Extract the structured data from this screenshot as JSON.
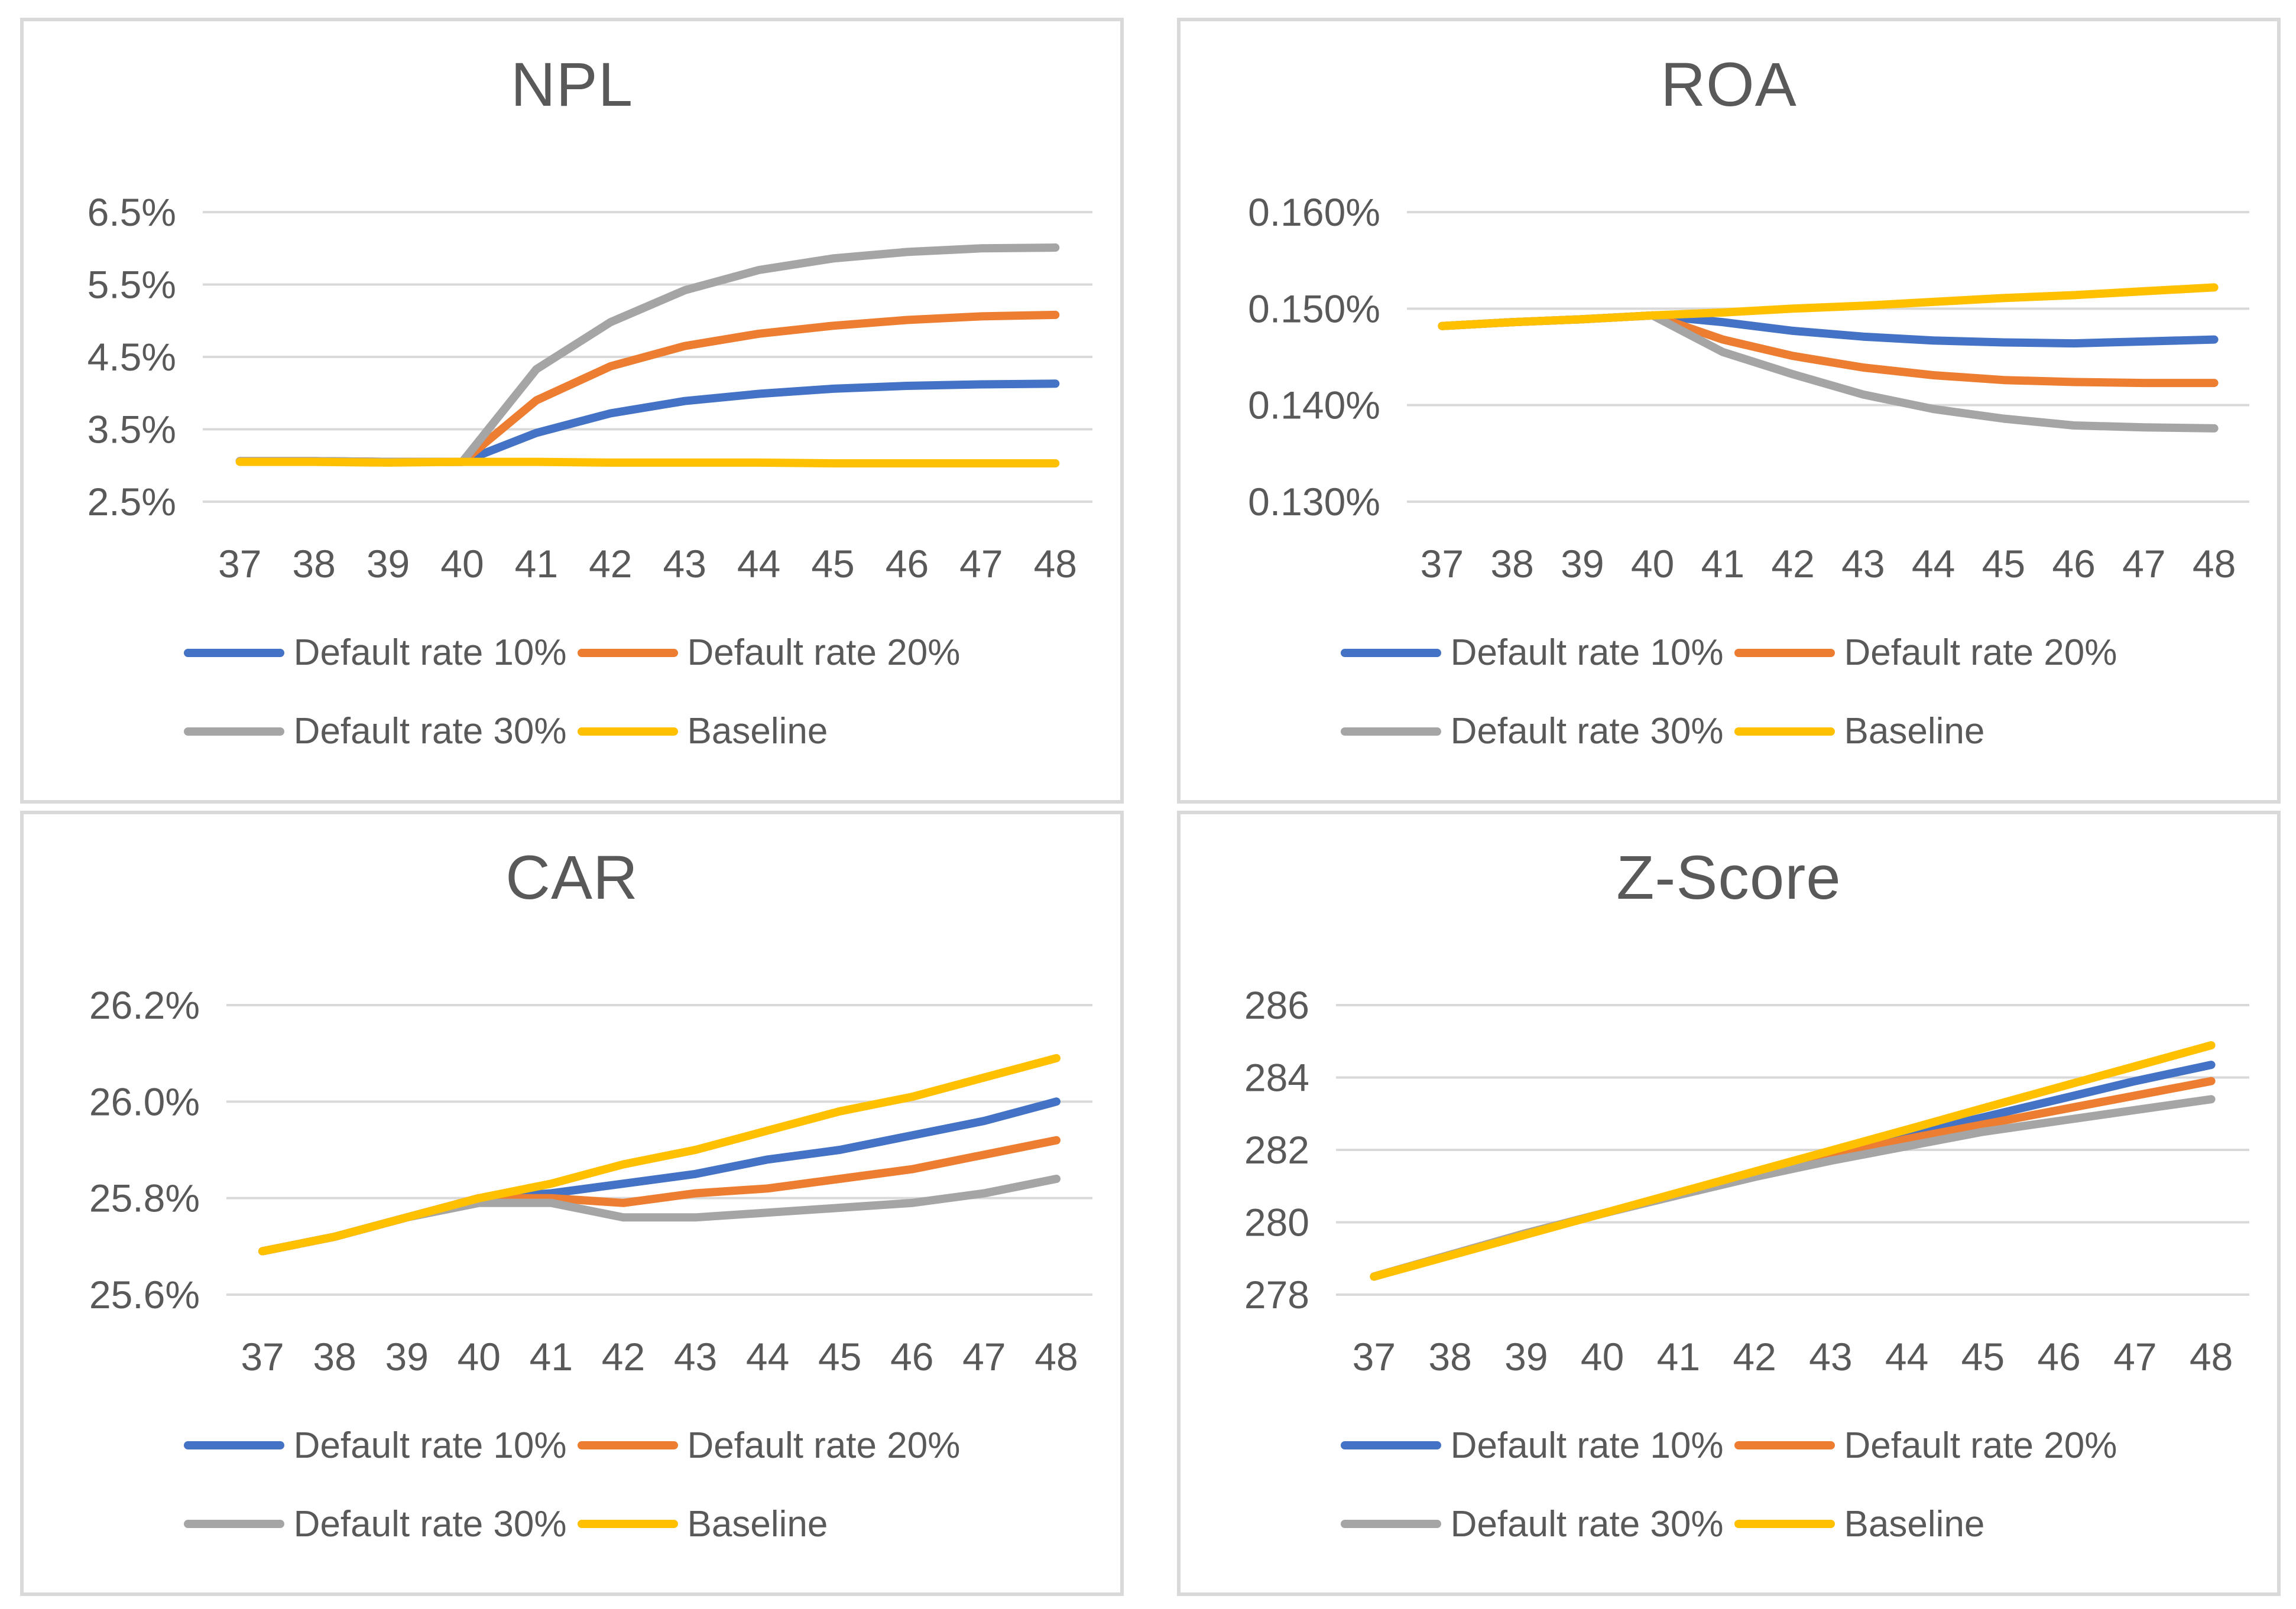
{
  "theme": {
    "text_color": "#595959",
    "gridline_color": "#D9D9D9",
    "panel_border_color": "#D9D9D9",
    "background": "#FFFFFF",
    "series_colors": {
      "default_rate_10": "#4472C4",
      "default_rate_20": "#ED7D31",
      "default_rate_30": "#A5A5A5",
      "baseline": "#FFC000"
    }
  },
  "chart_data": [
    {
      "id": "npl",
      "type": "line",
      "title": "NPL",
      "x": [
        37,
        38,
        39,
        40,
        41,
        42,
        43,
        44,
        45,
        46,
        47,
        48
      ],
      "ylim": [
        2.5,
        6.5
      ],
      "grid": true,
      "legend_position": "bottom",
      "y_ticks": [
        {
          "value": 2.5,
          "label": "2.5%"
        },
        {
          "value": 3.5,
          "label": "3.5%"
        },
        {
          "value": 4.5,
          "label": "4.5%"
        },
        {
          "value": 5.5,
          "label": "5.5%"
        },
        {
          "value": 6.5,
          "label": "6.5%"
        }
      ],
      "series": [
        {
          "name": "Default rate 10%",
          "color": "#4472C4",
          "values": [
            3.06,
            3.06,
            3.05,
            3.05,
            3.45,
            3.72,
            3.89,
            3.99,
            4.06,
            4.1,
            4.12,
            4.13
          ]
        },
        {
          "name": "Default rate 20%",
          "color": "#ED7D31",
          "values": [
            3.06,
            3.06,
            3.05,
            3.05,
            3.9,
            4.37,
            4.65,
            4.82,
            4.93,
            5.01,
            5.06,
            5.08
          ]
        },
        {
          "name": "Default rate 30%",
          "color": "#A5A5A5",
          "values": [
            3.06,
            3.06,
            3.05,
            3.05,
            4.33,
            4.98,
            5.42,
            5.7,
            5.86,
            5.95,
            6.0,
            6.01
          ]
        },
        {
          "name": "Baseline",
          "color": "#FFC000",
          "values": [
            3.05,
            3.05,
            3.04,
            3.05,
            3.05,
            3.04,
            3.04,
            3.04,
            3.03,
            3.03,
            3.03,
            3.03
          ]
        }
      ]
    },
    {
      "id": "roa",
      "type": "line",
      "title": "ROA",
      "x": [
        37,
        38,
        39,
        40,
        41,
        42,
        43,
        44,
        45,
        46,
        47,
        48
      ],
      "ylim": [
        0.13,
        0.16
      ],
      "grid": true,
      "legend_position": "bottom",
      "y_ticks": [
        {
          "value": 0.13,
          "label": "0.130%"
        },
        {
          "value": 0.14,
          "label": "0.140%"
        },
        {
          "value": 0.15,
          "label": "0.150%"
        },
        {
          "value": 0.16,
          "label": "0.160%"
        }
      ],
      "series": [
        {
          "name": "Default rate 10%",
          "color": "#4472C4",
          "values": [
            0.1482,
            0.1486,
            0.1489,
            0.1493,
            0.1486,
            0.1477,
            0.1471,
            0.1467,
            0.1465,
            0.1464,
            0.1466,
            0.1468
          ]
        },
        {
          "name": "Default rate 20%",
          "color": "#ED7D31",
          "values": [
            0.1482,
            0.1486,
            0.1489,
            0.1493,
            0.1468,
            0.1451,
            0.1439,
            0.1431,
            0.1426,
            0.1424,
            0.1423,
            0.1423
          ]
        },
        {
          "name": "Default rate 30%",
          "color": "#A5A5A5",
          "values": [
            0.1482,
            0.1486,
            0.1489,
            0.1493,
            0.1455,
            0.1432,
            0.1411,
            0.1396,
            0.1386,
            0.1379,
            0.1377,
            0.1376
          ]
        },
        {
          "name": "Baseline",
          "color": "#FFC000",
          "values": [
            0.1482,
            0.1486,
            0.1489,
            0.1493,
            0.1496,
            0.15,
            0.1503,
            0.1507,
            0.1511,
            0.1514,
            0.1518,
            0.1522
          ]
        }
      ]
    },
    {
      "id": "car",
      "type": "line",
      "title": "CAR",
      "x": [
        37,
        38,
        39,
        40,
        41,
        42,
        43,
        44,
        45,
        46,
        47,
        48
      ],
      "ylim": [
        25.6,
        26.2
      ],
      "grid": true,
      "legend_position": "bottom",
      "y_ticks": [
        {
          "value": 25.6,
          "label": "25.6%"
        },
        {
          "value": 25.8,
          "label": "25.8%"
        },
        {
          "value": 26.0,
          "label": "26.0%"
        },
        {
          "value": 26.2,
          "label": "26.2%"
        }
      ],
      "series": [
        {
          "name": "Default rate 10%",
          "color": "#4472C4",
          "values": [
            25.69,
            25.72,
            25.76,
            25.8,
            25.81,
            25.83,
            25.85,
            25.88,
            25.9,
            25.93,
            25.96,
            26.0
          ]
        },
        {
          "name": "Default rate 20%",
          "color": "#ED7D31",
          "values": [
            25.69,
            25.72,
            25.76,
            25.8,
            25.8,
            25.79,
            25.81,
            25.82,
            25.84,
            25.86,
            25.89,
            25.92
          ]
        },
        {
          "name": "Default rate 30%",
          "color": "#A5A5A5",
          "values": [
            25.69,
            25.72,
            25.76,
            25.79,
            25.79,
            25.76,
            25.76,
            25.77,
            25.78,
            25.79,
            25.81,
            25.84
          ]
        },
        {
          "name": "Baseline",
          "color": "#FFC000",
          "values": [
            25.69,
            25.72,
            25.76,
            25.8,
            25.83,
            25.87,
            25.9,
            25.94,
            25.98,
            26.01,
            26.05,
            26.09
          ]
        }
      ]
    },
    {
      "id": "zscore",
      "type": "line",
      "title": "Z-Score",
      "x": [
        37,
        38,
        39,
        40,
        41,
        42,
        43,
        44,
        45,
        46,
        47,
        48
      ],
      "ylim": [
        278,
        286
      ],
      "grid": true,
      "legend_position": "bottom",
      "y_ticks": [
        {
          "value": 278,
          "label": "278"
        },
        {
          "value": 280,
          "label": "280"
        },
        {
          "value": 282,
          "label": "282"
        },
        {
          "value": 284,
          "label": "284"
        },
        {
          "value": 286,
          "label": "286"
        }
      ],
      "series": [
        {
          "name": "Default rate 10%",
          "color": "#4472C4",
          "values": [
            278.5,
            279.1,
            279.7,
            280.24,
            280.8,
            281.35,
            281.9,
            282.4,
            282.9,
            283.4,
            283.9,
            284.35
          ]
        },
        {
          "name": "Default rate 20%",
          "color": "#ED7D31",
          "values": [
            278.5,
            279.1,
            279.7,
            280.24,
            280.78,
            281.3,
            281.8,
            282.3,
            282.7,
            283.1,
            283.5,
            283.9
          ]
        },
        {
          "name": "Default rate 30%",
          "color": "#A5A5A5",
          "values": [
            278.5,
            279.1,
            279.7,
            280.24,
            280.75,
            281.25,
            281.7,
            282.1,
            282.5,
            282.8,
            283.1,
            283.4
          ]
        },
        {
          "name": "Baseline",
          "color": "#FFC000",
          "values": [
            278.5,
            279.08,
            279.66,
            280.24,
            280.82,
            281.4,
            281.98,
            282.56,
            283.15,
            283.73,
            284.31,
            284.89
          ]
        }
      ]
    }
  ]
}
